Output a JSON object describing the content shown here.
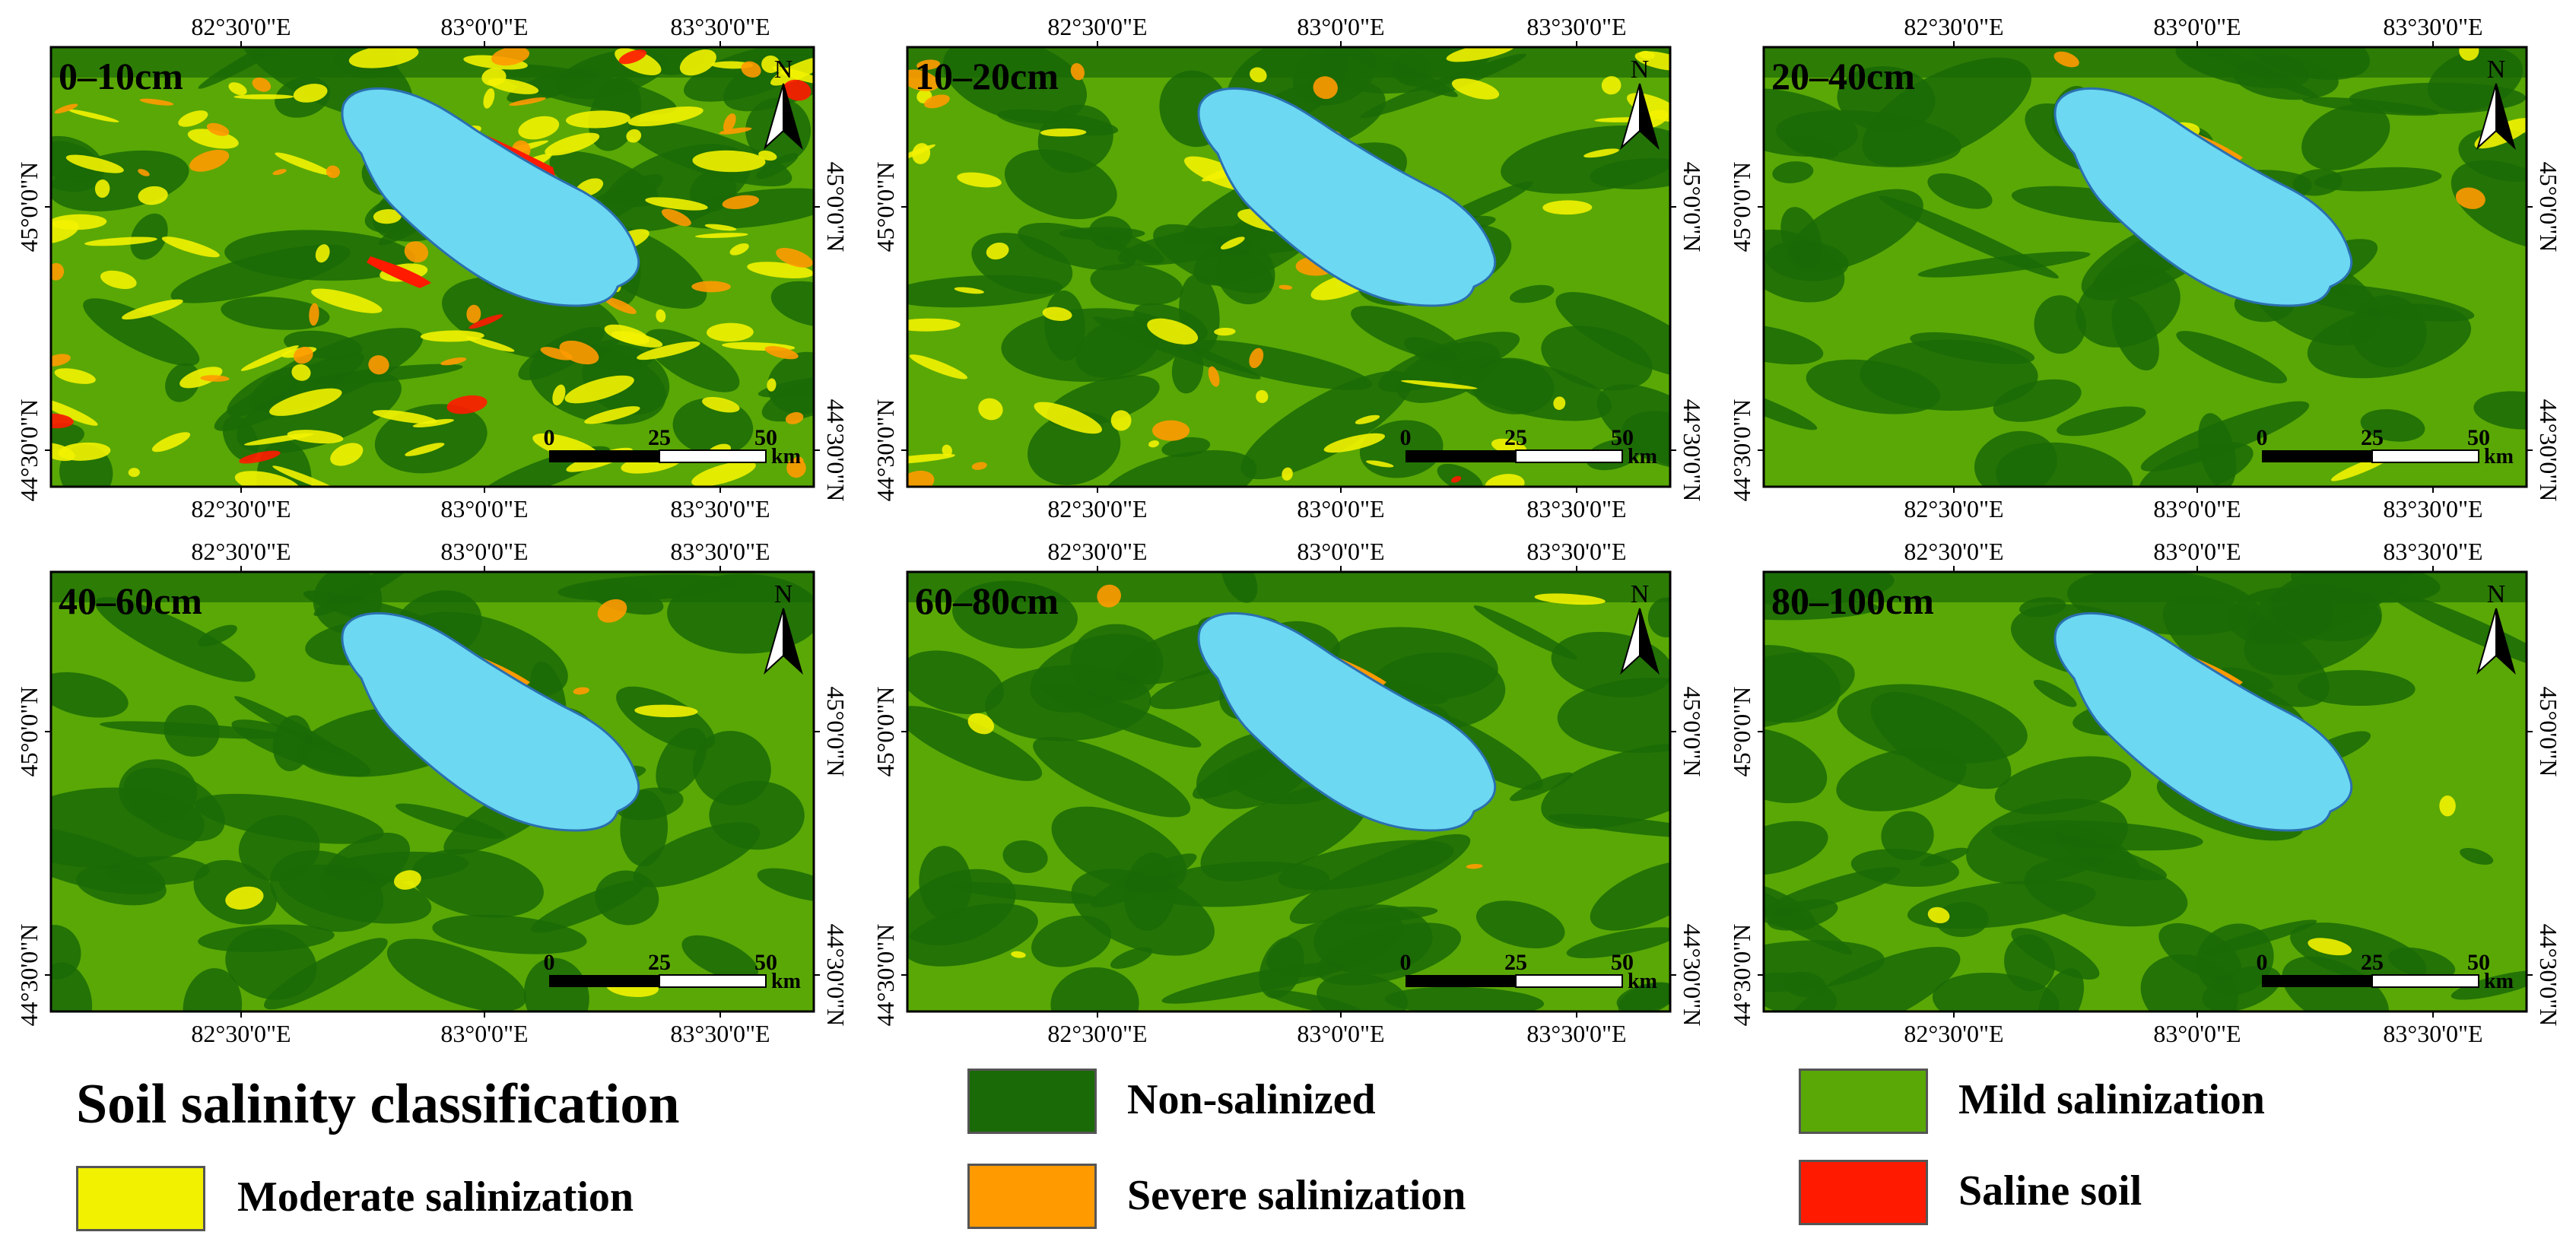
{
  "colors": {
    "non_salinized": "#1a6a07",
    "mild_salinization": "#5aa806",
    "moderate_salinization": "#f2f200",
    "severe_salinization": "#ff9a00",
    "saline_soil": "#ff1a00",
    "lake": "#6cd8f2",
    "lake_outline": "#2a6fb0"
  },
  "axis_labels": {
    "x_ticks": [
      "82°30'0\"E",
      "83°0'0\"E",
      "83°30'0\"E"
    ],
    "y_ticks": [
      "45°0'0\"N",
      "44°30'0\"N"
    ]
  },
  "north_arrow": {
    "label": "N",
    "icon": "north-arrow-icon"
  },
  "scale_bar": {
    "ticks": [
      "0",
      "25",
      "50"
    ],
    "unit": "km"
  },
  "panels": [
    {
      "label": "0–10cm",
      "pattern": "high"
    },
    {
      "label": "10–20cm",
      "pattern": "medium"
    },
    {
      "label": "20–40cm",
      "pattern": "low"
    },
    {
      "label": "40–60cm",
      "pattern": "low"
    },
    {
      "label": "60–80cm",
      "pattern": "low"
    },
    {
      "label": "80–100cm",
      "pattern": "low"
    }
  ],
  "legend": {
    "title": "Soil salinity classification",
    "items": [
      {
        "label": "Non-salinized",
        "color": "#1a6a07"
      },
      {
        "label": "Mild salinization",
        "color": "#5aa806"
      },
      {
        "label": "Moderate salinization",
        "color": "#f2f200"
      },
      {
        "label": "Severe salinization",
        "color": "#ff9a00"
      },
      {
        "label": "Saline soil",
        "color": "#ff1a00"
      }
    ]
  }
}
